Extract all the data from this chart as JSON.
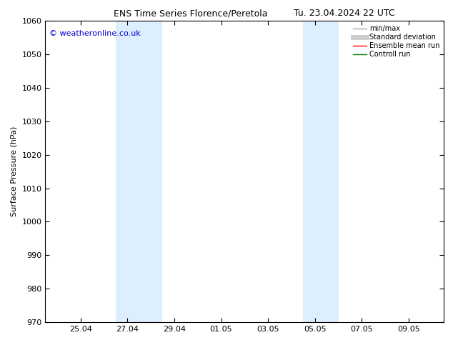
{
  "title_left": "ENS Time Series Florence/Peretola",
  "title_right": "Tu. 23.04.2024 22 UTC",
  "ylabel": "Surface Pressure (hPa)",
  "ylim": [
    970,
    1060
  ],
  "yticks": [
    970,
    980,
    990,
    1000,
    1010,
    1020,
    1030,
    1040,
    1050,
    1060
  ],
  "xtick_labels": [
    "25.04",
    "27.04",
    "29.04",
    "01.05",
    "03.05",
    "05.05",
    "07.05",
    "09.05"
  ],
  "xtick_positions": [
    2.0,
    4.0,
    6.0,
    8.0,
    10.0,
    12.0,
    14.0,
    16.0
  ],
  "xlim": [
    0.5,
    17.5
  ],
  "weekend_bands": [
    {
      "x_start": 3.5,
      "x_end": 5.5
    },
    {
      "x_start": 11.5,
      "x_end": 13.0
    }
  ],
  "band_color": "#ddeeff",
  "background_color": "#ffffff",
  "watermark_text": "© weatheronline.co.uk",
  "watermark_color": "#0000cc",
  "legend_items": [
    {
      "label": "min/max",
      "color": "#aaaaaa",
      "lw": 1.0,
      "style": "-"
    },
    {
      "label": "Standard deviation",
      "color": "#cccccc",
      "lw": 5,
      "style": "-"
    },
    {
      "label": "Ensemble mean run",
      "color": "#ff0000",
      "lw": 1.0,
      "style": "-"
    },
    {
      "label": "Controll run",
      "color": "#008000",
      "lw": 1.0,
      "style": "-"
    }
  ],
  "title_fontsize": 9,
  "axis_fontsize": 8,
  "tick_fontsize": 8,
  "legend_fontsize": 7,
  "watermark_fontsize": 8
}
